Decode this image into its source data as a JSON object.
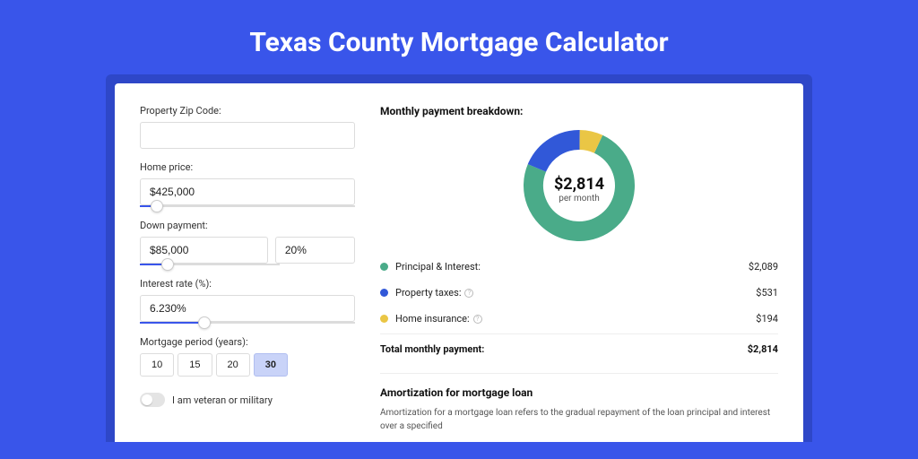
{
  "title": "Texas County Mortgage Calculator",
  "colors": {
    "page_bg": "#3955ea",
    "outer_card_bg": "#2e47c8",
    "card_bg": "#ffffff",
    "accent": "#3955ea",
    "principal": "#4aab89",
    "tax": "#3158d8",
    "insurance": "#eac645",
    "border": "#dcdcdc",
    "text": "#222222"
  },
  "form": {
    "zip_label": "Property Zip Code:",
    "zip_value": "",
    "price_label": "Home price:",
    "price_value": "$425,000",
    "price_slider_pct": 8,
    "down_label": "Down payment:",
    "down_value": "$85,000",
    "down_pct": "20%",
    "down_slider_pct": 20,
    "rate_label": "Interest rate (%):",
    "rate_value": "6.230%",
    "rate_slider_pct": 30,
    "period_label": "Mortgage period (years):",
    "periods": [
      "10",
      "15",
      "20",
      "30"
    ],
    "period_active": "30",
    "veteran_label": "I am veteran or military",
    "veteran_on": false
  },
  "breakdown": {
    "title": "Monthly payment breakdown:",
    "donut": {
      "amount": "$2,814",
      "sub": "per month",
      "size": 124,
      "ring": 22,
      "slices": [
        {
          "color": "#4aab89",
          "pct": 74.2
        },
        {
          "color": "#3158d8",
          "pct": 18.9
        },
        {
          "color": "#eac645",
          "pct": 6.9
        }
      ]
    },
    "items": [
      {
        "color": "#4aab89",
        "label": "Principal & Interest:",
        "value": "$2,089",
        "info": false
      },
      {
        "color": "#3158d8",
        "label": "Property taxes:",
        "value": "$531",
        "info": true
      },
      {
        "color": "#eac645",
        "label": "Home insurance:",
        "value": "$194",
        "info": true
      }
    ],
    "total_label": "Total monthly payment:",
    "total_value": "$2,814"
  },
  "amort": {
    "title": "Amortization for mortgage loan",
    "text": "Amortization for a mortgage loan refers to the gradual repayment of the loan principal and interest over a specified"
  }
}
